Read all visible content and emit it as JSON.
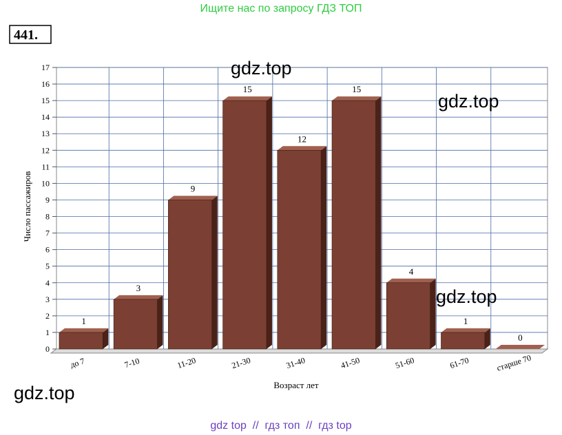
{
  "header": "Ищите нас по запросу ГДЗ ТОП",
  "problem_number": "441.",
  "watermarks": [
    "gdz.top",
    "gdz.top",
    "gdz.top",
    "gdz.top"
  ],
  "footer": "gdz top  //  гдз топ  //  гдз top",
  "chart_data": {
    "type": "bar",
    "x_label": "Возраст лет",
    "y_label": "Число пассажиров",
    "categories": [
      "до 7",
      "7-10",
      "11-20",
      "21-30",
      "31-40",
      "41-50",
      "51-60",
      "61-70",
      "старше 70"
    ],
    "values": [
      1,
      3,
      9,
      15,
      12,
      15,
      4,
      1,
      0
    ],
    "color": "#7b4033",
    "ylim": [
      0,
      17
    ],
    "yticks": [
      0,
      1,
      2,
      3,
      4,
      5,
      6,
      7,
      8,
      9,
      10,
      11,
      12,
      13,
      14,
      15,
      16,
      17
    ],
    "grid": true
  }
}
